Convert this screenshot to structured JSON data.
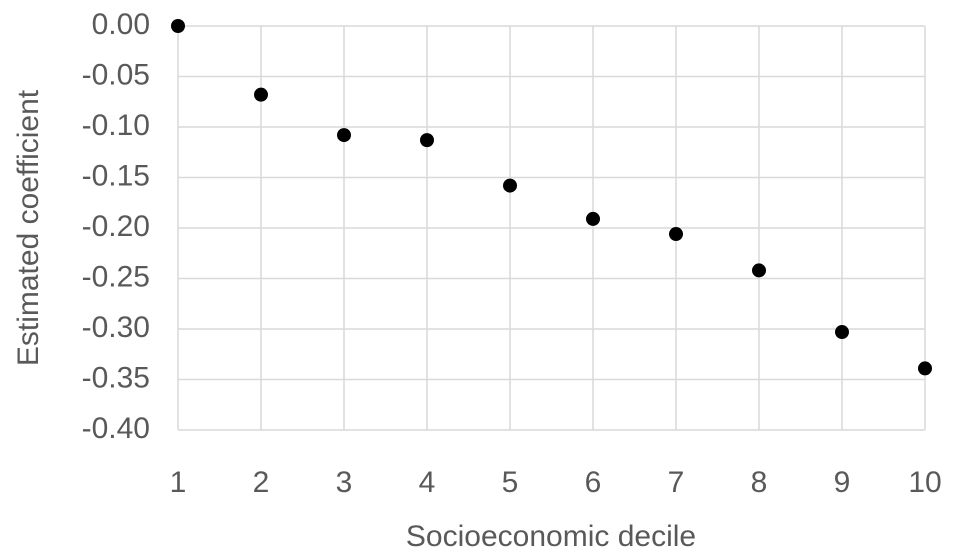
{
  "chart_data": {
    "type": "scatter",
    "x_label": "Socioeconomic decile",
    "y_label": "Estimated coefficient",
    "x": [
      1,
      2,
      3,
      4,
      5,
      6,
      7,
      8,
      9,
      10
    ],
    "values": [
      0.0,
      -0.068,
      -0.108,
      -0.113,
      -0.158,
      -0.191,
      -0.206,
      -0.242,
      -0.303,
      -0.339
    ],
    "color": "#000000",
    "xlim": [
      1,
      10
    ],
    "xticks": [
      1,
      2,
      3,
      4,
      5,
      6,
      7,
      8,
      9,
      10
    ],
    "ylim": [
      -0.4,
      0
    ],
    "yticks": [
      {
        "value": 0,
        "label": "0.00"
      },
      {
        "value": -0.05,
        "label": "-0.05"
      },
      {
        "value": -0.1,
        "label": "-0.10"
      },
      {
        "value": -0.15,
        "label": "-0.15"
      },
      {
        "value": -0.2,
        "label": "-0.20"
      },
      {
        "value": -0.25,
        "label": "-0.25"
      },
      {
        "value": -0.3,
        "label": "-0.30"
      },
      {
        "value": -0.35,
        "label": "-0.35"
      },
      {
        "value": -0.4,
        "label": "-0.40"
      }
    ],
    "grid": true
  }
}
